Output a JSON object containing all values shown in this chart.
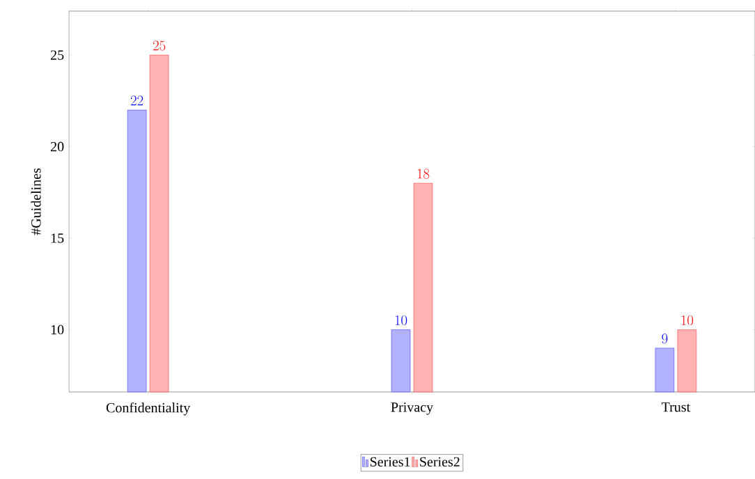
{
  "chart_data": {
    "type": "bar",
    "ylabel": "#Guidelines",
    "categories": [
      "Confidentiality",
      "Privacy",
      "Trust"
    ],
    "series": [
      {
        "name": "Series1",
        "color": "#0000ff",
        "values": [
          22,
          10,
          9
        ]
      },
      {
        "name": "Series2",
        "color": "#ff0000",
        "values": [
          25,
          18,
          10
        ]
      }
    ],
    "ylim": [
      6.6,
      27.4
    ],
    "yticks": [
      10,
      15,
      20,
      25
    ],
    "data_labels": true,
    "legend": "bottom",
    "grid": false
  }
}
